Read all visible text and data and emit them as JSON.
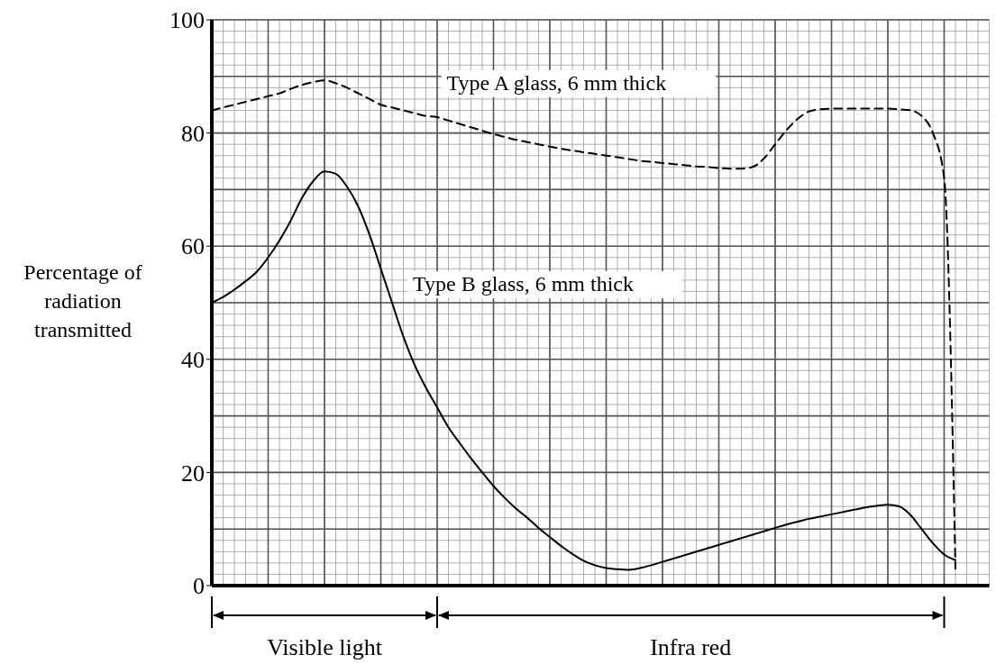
{
  "chart_data": {
    "type": "line",
    "ylabel": "Percentage of radiation transmitted",
    "categories": [
      null,
      null,
      null,
      null,
      null,
      null,
      null,
      null,
      null,
      null,
      null,
      null,
      null,
      null,
      null,
      null,
      null,
      null,
      null,
      null,
      null,
      null,
      null,
      null,
      null,
      null,
      null,
      null,
      null,
      null,
      null,
      null,
      null,
      null,
      null,
      null,
      null,
      null,
      null,
      null,
      null,
      null,
      null,
      null,
      null,
      null,
      null,
      null,
      null,
      null,
      null,
      null,
      null,
      null,
      null,
      null,
      null,
      null,
      null,
      null,
      null,
      null,
      null,
      null,
      null,
      null,
      null,
      null,
      null,
      null
    ],
    "series": [
      {
        "name": "Type A glass, 6 mm thick",
        "color": "#000000",
        "line_style": "dashed",
        "values": [
          84,
          84.5,
          85,
          85.5,
          86,
          86.5,
          87,
          87.8,
          88.5,
          89,
          89.3,
          88.8,
          88,
          87,
          86,
          85,
          84.5,
          84,
          83.5,
          83,
          82.8,
          82.2,
          81.6,
          81,
          80.4,
          79.8,
          79.3,
          78.8,
          78.4,
          78,
          77.6,
          77.2,
          76.9,
          76.6,
          76.3,
          76,
          75.7,
          75.4,
          75.1,
          74.9,
          74.7,
          74.5,
          74.3,
          74.1,
          74,
          73.8,
          73.7,
          73.7,
          74,
          75.5,
          78,
          80.5,
          82.5,
          83.8,
          84.2,
          84.3,
          84.3,
          84.3,
          84.3,
          84.3,
          84.3,
          84.2,
          84,
          83,
          80,
          72,
          3,
          null,
          null,
          null
        ]
      },
      {
        "name": "Type B glass, 6 mm thick",
        "color": "#000000",
        "line_style": "solid",
        "values": [
          50,
          51,
          52.3,
          53.8,
          55.5,
          58,
          61,
          64.5,
          68.5,
          71.5,
          73.2,
          72.8,
          70.5,
          67,
          62,
          56,
          50,
          44,
          39,
          35,
          31.5,
          28,
          25.2,
          22.5,
          20,
          17.6,
          15.5,
          13.6,
          12,
          10.2,
          8.6,
          7,
          5.6,
          4.4,
          3.6,
          3.1,
          2.9,
          2.8,
          3.1,
          3.6,
          4.2,
          4.8,
          5.4,
          6,
          6.6,
          7.2,
          7.8,
          8.4,
          9,
          9.6,
          10.2,
          10.8,
          11.3,
          11.8,
          12.2,
          12.6,
          13,
          13.4,
          13.8,
          14.1,
          14.3,
          14,
          12.5,
          10,
          7.5,
          5.5,
          4.5,
          null,
          null,
          null
        ]
      }
    ],
    "ylim": [
      0,
      100
    ],
    "yticks": [
      0,
      20,
      40,
      60,
      80,
      100
    ],
    "grid": true,
    "marker": "none",
    "annotations": [
      "Visible light",
      "Infra red"
    ]
  }
}
